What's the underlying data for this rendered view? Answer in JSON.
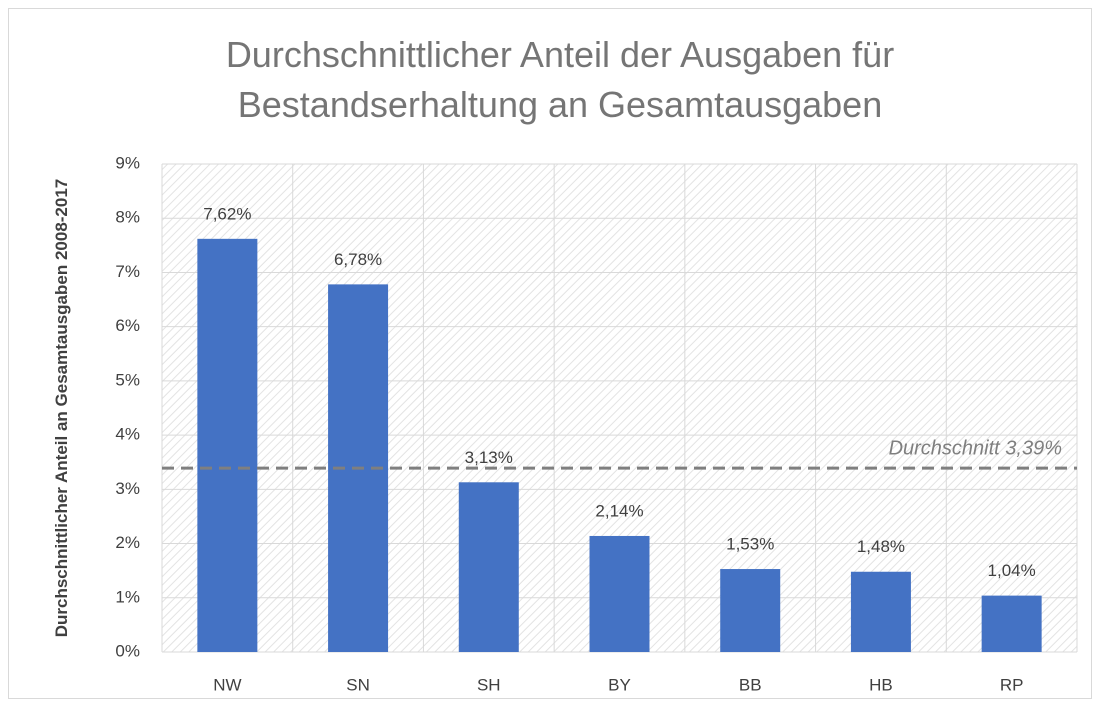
{
  "chart_data": {
    "type": "bar",
    "title": "Durchschnittlicher Anteil der Ausgaben für Bestandserhaltung an Gesamtausgaben",
    "y_label": "Durchschnittlicher Anteil an Gesamtausgaben 2008-2017",
    "categories": [
      "NW",
      "SN",
      "SH",
      "BY",
      "BB",
      "HB",
      "RP"
    ],
    "values": [
      7.62,
      6.78,
      3.13,
      2.14,
      1.53,
      1.48,
      1.04
    ],
    "value_labels": [
      "7,62%",
      "6,78%",
      "3,13%",
      "2,14%",
      "1,53%",
      "1,48%",
      "1,04%"
    ],
    "color": "#4472c4",
    "ylim": [
      0,
      9
    ],
    "yticks": [
      {
        "value": 0,
        "label": "0%"
      },
      {
        "value": 1,
        "label": "1%"
      },
      {
        "value": 2,
        "label": "2%"
      },
      {
        "value": 3,
        "label": "3%"
      },
      {
        "value": 4,
        "label": "4%"
      },
      {
        "value": 5,
        "label": "5%"
      },
      {
        "value": 6,
        "label": "6%"
      },
      {
        "value": 7,
        "label": "7%"
      },
      {
        "value": 8,
        "label": "8%"
      },
      {
        "value": 9,
        "label": "9%"
      }
    ],
    "grid": true,
    "average": {
      "value": 3.39,
      "label": "Durchschnitt 3,39%"
    }
  }
}
